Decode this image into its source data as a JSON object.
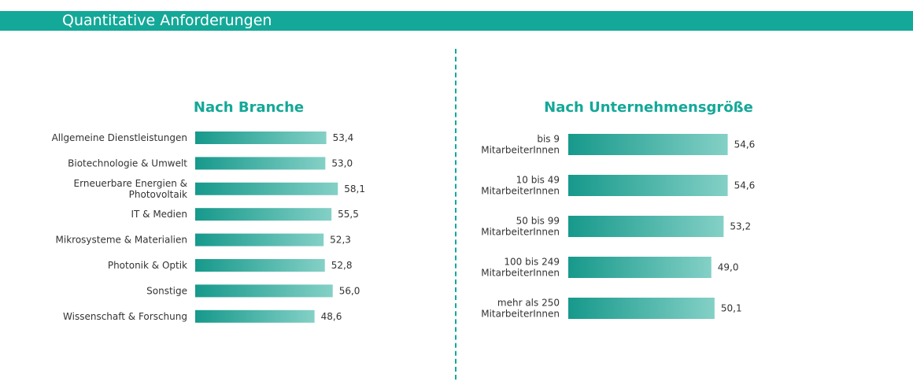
{
  "header": {
    "title": "Quantitative Anforderungen"
  },
  "colors": {
    "accent": "#14a898",
    "bar_start": "#16998b",
    "bar_end": "#84d0c6"
  },
  "chart_data": [
    {
      "type": "bar",
      "orientation": "horizontal",
      "title": "Nach Branche",
      "categories": [
        [
          "Allgemeine Dienstleistungen"
        ],
        [
          "Biotechnologie & Umwelt"
        ],
        [
          "Erneuerbare Energien &",
          "Photovoltaik"
        ],
        [
          "IT & Medien"
        ],
        [
          "Mikrosysteme & Materialien"
        ],
        [
          "Photonik & Optik"
        ],
        [
          "Sonstige"
        ],
        [
          "Wissenschaft & Forschung"
        ]
      ],
      "values": [
        53.4,
        53.0,
        58.1,
        55.5,
        52.3,
        52.8,
        56.0,
        48.6
      ],
      "value_labels": [
        "53,4",
        "53,0",
        "58,1",
        "55,5",
        "52,3",
        "52,8",
        "56,0",
        "48,6"
      ],
      "xlim": [
        0,
        64
      ]
    },
    {
      "type": "bar",
      "orientation": "horizontal",
      "title": "Nach Unternehmensgröße",
      "categories": [
        [
          "bis 9",
          "MitarbeiterInnen"
        ],
        [
          "10 bis 49",
          "MitarbeiterInnen"
        ],
        [
          "50 bis 99",
          "MitarbeiterInnen"
        ],
        [
          "100 bis 249",
          "MitarbeiterInnen"
        ],
        [
          "mehr als 250",
          "MitarbeiterInnen"
        ]
      ],
      "values": [
        54.6,
        54.6,
        53.2,
        49.0,
        50.1
      ],
      "value_labels": [
        "54,6",
        "54,6",
        "53,2",
        "49,0",
        "50,1"
      ],
      "xlim": [
        0,
        64
      ]
    }
  ]
}
